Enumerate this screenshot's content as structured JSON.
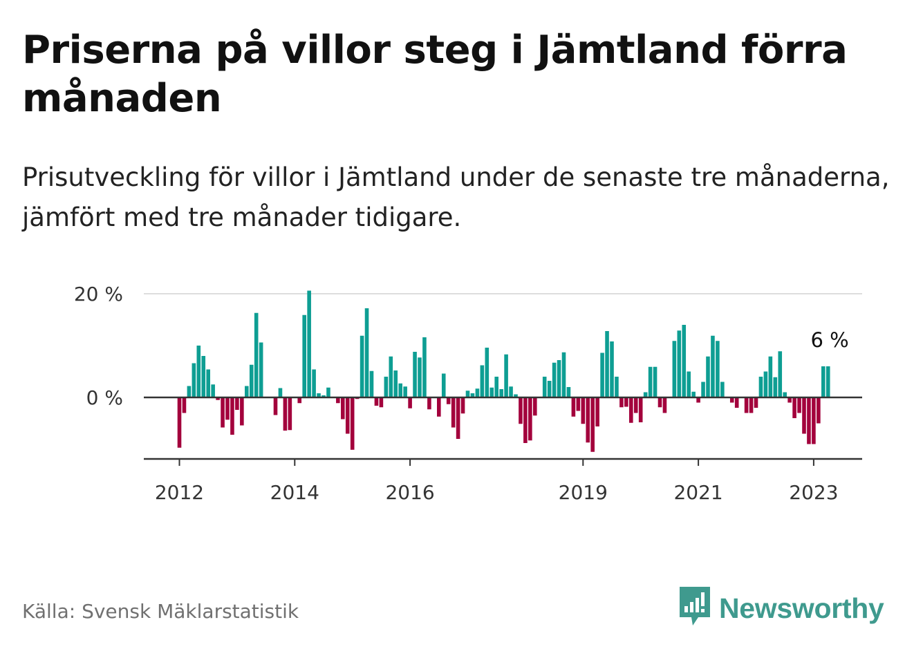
{
  "title": "Priserna på villor steg i Jämtland förra månaden",
  "subtitle": "Prisutveckling för villor i Jämtland under de senaste tre månaderna, jämfört med tre månader tidigare.",
  "source": "Källa: Svensk Mäklarstatistik",
  "brand": {
    "name": "Newsworthy",
    "icon": "newsworthy-logo-icon"
  },
  "colors": {
    "positive": "#0e9e93",
    "negative": "#a3013c",
    "grid": "#dddddd",
    "axis": "#333333",
    "brand": "#3f9a8e"
  },
  "chart_data": {
    "type": "bar",
    "title": "Priserna på villor steg i Jämtland förra månaden",
    "subtitle": "Prisutveckling för villor i Jämtland under de senaste tre månaderna, jämfört med tre månader tidigare.",
    "x_start": "2012-01",
    "x_end": "2023-06",
    "ylim": [
      -12,
      20
    ],
    "y_ticks": [
      {
        "value": 0,
        "label": "0 %"
      },
      {
        "value": 20,
        "label": "20 %"
      }
    ],
    "x_ticks": [
      {
        "month": "2012-01",
        "label": "2012"
      },
      {
        "month": "2014-01",
        "label": "2014"
      },
      {
        "month": "2016-01",
        "label": "2016"
      },
      {
        "month": "2019-01",
        "label": "2019"
      },
      {
        "month": "2021-01",
        "label": "2021"
      },
      {
        "month": "2023-01",
        "label": "2023"
      }
    ],
    "grid": true,
    "annotation": {
      "label": "6 %",
      "value": 6
    },
    "values": [
      -9.7,
      -3,
      2.2,
      6.6,
      10,
      8,
      5.4,
      2.5,
      -0.5,
      -5.8,
      -4.3,
      -7.2,
      -2.4,
      -5.4,
      2.2,
      6.3,
      16.3,
      10.6,
      0,
      0,
      -3.4,
      1.8,
      -6.4,
      -6.3,
      0,
      -1.1,
      15.9,
      20.6,
      5.4,
      0.8,
      0.4,
      1.9,
      0,
      -1.1,
      -4.2,
      -7,
      -10.1,
      -0.3,
      11.9,
      17.2,
      5.1,
      -1.6,
      -1.9,
      4,
      7.9,
      5.2,
      2.7,
      2.1,
      -2.1,
      8.8,
      7.7,
      11.6,
      -2.3,
      0,
      -3.7,
      4.6,
      -1.3,
      -5.8,
      -8,
      -3.1,
      1.3,
      0.8,
      1.7,
      6.2,
      9.6,
      1.9,
      4,
      1.6,
      8.3,
      2.1,
      0.6,
      -5.1,
      -8.8,
      -8.3,
      -3.5,
      0,
      4,
      3.2,
      6.7,
      7.2,
      8.7,
      2,
      -3.7,
      -2.6,
      -5.1,
      -8.7,
      -10.5,
      -5.6,
      8.6,
      12.8,
      10.8,
      4,
      -1.9,
      -1.8,
      -4.9,
      -3,
      -4.8,
      1,
      5.9,
      5.9,
      -1.9,
      -3,
      0,
      10.9,
      12.9,
      14,
      5,
      1.1,
      -1,
      3,
      7.9,
      11.9,
      10.9,
      3,
      0,
      -1,
      -2,
      0,
      -3,
      -3,
      -2,
      4,
      5,
      7.9,
      3.9,
      8.9,
      1,
      -1,
      -4,
      -3,
      -7,
      -9,
      -9,
      -5,
      6,
      6
    ]
  }
}
